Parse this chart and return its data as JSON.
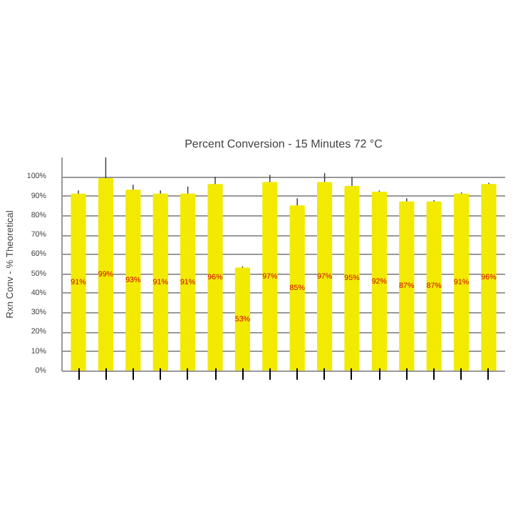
{
  "chart_data": {
    "type": "bar",
    "title": "Percent Conversion - 15 Minutes 72 °C",
    "ylabel": "Rxn Conv - % Theoretical",
    "categories": [
      null,
      null,
      null,
      null,
      null,
      null,
      null,
      null,
      null,
      null,
      null,
      null,
      null,
      null,
      null,
      null
    ],
    "series": [
      {
        "color": "#f2ea00",
        "values": [
          91,
          99,
          93,
          91,
          91,
          96,
          53,
          97,
          85,
          97,
          95,
          92,
          87,
          87,
          91,
          96
        ],
        "errors": [
          2,
          11,
          3,
          2,
          4,
          4,
          1,
          4,
          4,
          5,
          5,
          1,
          2,
          1,
          1,
          1
        ],
        "value_labels": [
          "91%",
          "99%",
          "93%",
          "91%",
          "91%",
          "96%",
          "53%",
          "97%",
          "85%",
          "97%",
          "95%",
          "92%",
          "87%",
          "87%",
          "91%",
          "96%"
        ]
      }
    ],
    "ylim": [
      0,
      110
    ],
    "yticks": [
      {
        "value": 0,
        "label": "0%"
      },
      {
        "value": 10,
        "label": "10%"
      },
      {
        "value": 20,
        "label": "20%"
      },
      {
        "value": 30,
        "label": "30%"
      },
      {
        "value": 40,
        "label": "40%"
      },
      {
        "value": 50,
        "label": "50%"
      },
      {
        "value": 60,
        "label": "60%"
      },
      {
        "value": 70,
        "label": "70%"
      },
      {
        "value": 80,
        "label": "80%"
      },
      {
        "value": 90,
        "label": "90%"
      },
      {
        "value": 100,
        "label": "100%"
      }
    ],
    "grid": "y"
  }
}
